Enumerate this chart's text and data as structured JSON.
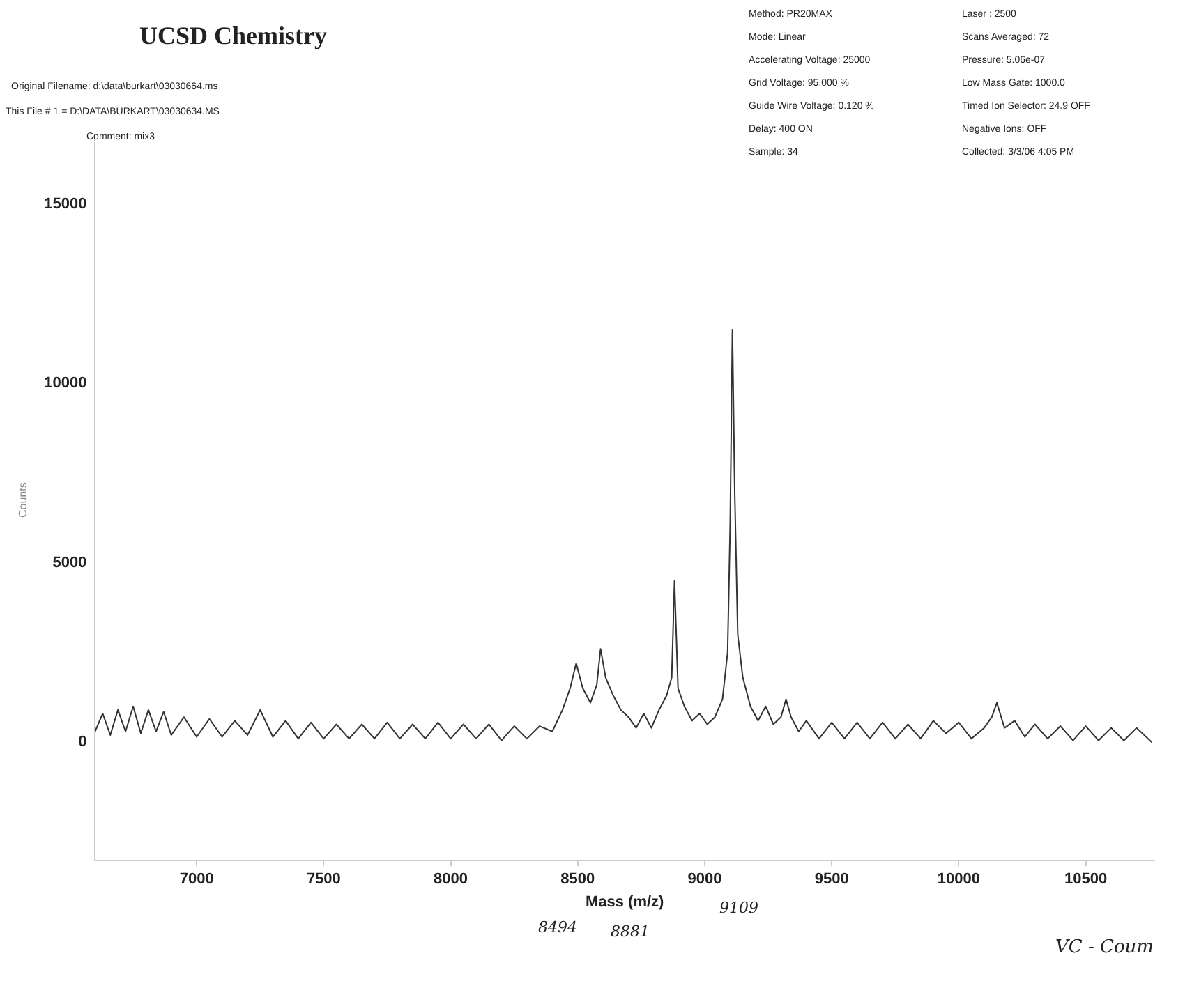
{
  "chart_data": {
    "type": "line",
    "title": "UCSD Chemistry",
    "xlabel": "Mass (m/z)",
    "ylabel": "Counts",
    "x": [
      6600,
      6630,
      6660,
      6690,
      6720,
      6750,
      6780,
      6810,
      6840,
      6870,
      6900,
      6950,
      7000,
      7050,
      7100,
      7150,
      7200,
      7250,
      7300,
      7350,
      7400,
      7450,
      7500,
      7550,
      7600,
      7650,
      7700,
      7750,
      7800,
      7850,
      7900,
      7950,
      8000,
      8050,
      8100,
      8150,
      8200,
      8250,
      8300,
      8350,
      8400,
      8440,
      8470,
      8494,
      8520,
      8550,
      8575,
      8590,
      8610,
      8640,
      8670,
      8700,
      8730,
      8760,
      8790,
      8820,
      8850,
      8870,
      8881,
      8895,
      8920,
      8950,
      8980,
      9010,
      9040,
      9070,
      9090,
      9100,
      9109,
      9118,
      9130,
      9150,
      9180,
      9210,
      9240,
      9270,
      9300,
      9320,
      9340,
      9370,
      9400,
      9450,
      9500,
      9550,
      9600,
      9650,
      9700,
      9750,
      9800,
      9850,
      9900,
      9950,
      10000,
      10050,
      10100,
      10130,
      10150,
      10180,
      10220,
      10260,
      10300,
      10350,
      10400,
      10450,
      10500,
      10550,
      10600,
      10650,
      10700,
      10760
    ],
    "series": [
      {
        "color": "#333333",
        "values": [
          300,
          800,
          200,
          900,
          300,
          1000,
          250,
          900,
          300,
          850,
          200,
          700,
          150,
          650,
          150,
          600,
          200,
          900,
          150,
          600,
          100,
          550,
          100,
          500,
          100,
          500,
          100,
          550,
          100,
          500,
          100,
          550,
          100,
          500,
          100,
          500,
          50,
          450,
          100,
          450,
          300,
          900,
          1500,
          2200,
          1500,
          1100,
          1600,
          2600,
          1800,
          1300,
          900,
          700,
          400,
          800,
          400,
          900,
          1300,
          1800,
          4500,
          1500,
          1000,
          600,
          800,
          500,
          700,
          1200,
          2500,
          6000,
          11500,
          7000,
          3000,
          1800,
          1000,
          600,
          1000,
          500,
          700,
          1200,
          700,
          300,
          600,
          100,
          550,
          100,
          550,
          100,
          550,
          100,
          500,
          100,
          600,
          250,
          550,
          100,
          400,
          700,
          1100,
          400,
          600,
          150,
          500,
          100,
          450,
          50,
          450,
          50,
          400,
          50,
          400,
          0
        ]
      }
    ],
    "xlim": [
      6600,
      10770
    ],
    "xticks": [
      7000,
      7500,
      8000,
      8500,
      9000,
      9500,
      10000,
      10500
    ],
    "ylim": [
      -3300,
      16800
    ],
    "yticks": [
      0,
      5000,
      10000,
      15000
    ],
    "grid": false,
    "legend": false,
    "marker": "none",
    "line_style": "solid",
    "annotations": [
      "Original Filename: d:\\data\\burkart\\03030664.ms",
      "This File # 1 = D:\\DATA\\BURKART\\03030634.MS",
      "Comment: mix3",
      "Method: PR20MAX",
      "Mode: Linear",
      "Accelerating Voltage: 25000",
      "Grid Voltage: 95.000 %",
      "Guide Wire Voltage: 0.120 %",
      "Delay: 400 ON",
      "Sample: 34",
      "Laser : 2500",
      "Scans Averaged: 72",
      "Pressure: 5.06e-07",
      "Low Mass Gate: 1000.0",
      "Timed Ion Selector: 24.9 OFF",
      "Negative Ions: OFF",
      "Collected: 3/3/06 4:05 PM",
      "8494",
      "8881",
      "9109",
      "VC - Coum"
    ]
  }
}
